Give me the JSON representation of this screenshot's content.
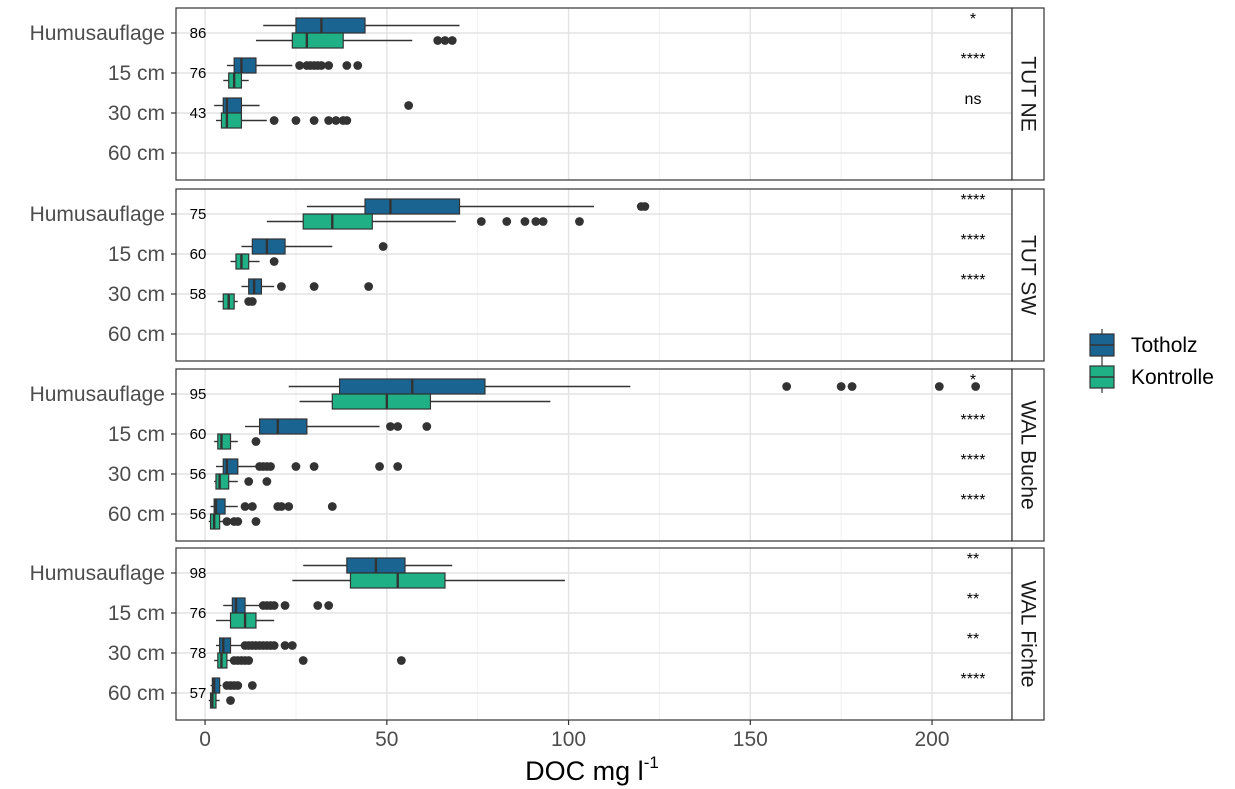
{
  "chart_data": {
    "type": "boxplot",
    "orientation": "horizontal",
    "xlabel_base": "DOC mg l",
    "xlabel_sup": "-1",
    "xlim": [
      -8,
      222
    ],
    "x_ticks": [
      0,
      50,
      100,
      150,
      200
    ],
    "x_tick_labels": [
      "0",
      "50",
      "100",
      "150",
      "200"
    ],
    "categories": [
      "Humusauflage",
      "15 cm",
      "30 cm",
      "60 cm"
    ],
    "grid": true,
    "legend": {
      "position": "right",
      "entries": [
        {
          "name": "Totholz",
          "color": "#1a6491"
        },
        {
          "name": "Kontrolle",
          "color": "#1fb185"
        }
      ]
    },
    "facets": [
      {
        "label": "TUT NE",
        "annotations": [
          {
            "category": "Humusauflage",
            "n": "86",
            "sig": "*"
          },
          {
            "category": "15 cm",
            "n": "76",
            "sig": "****"
          },
          {
            "category": "30 cm",
            "n": "43",
            "sig": "ns"
          }
        ],
        "boxes": [
          {
            "category": "Humusauflage",
            "group": "Totholz",
            "min": 16,
            "q1": 25,
            "median": 32,
            "q3": 44,
            "max": 70,
            "outliers": []
          },
          {
            "category": "Humusauflage",
            "group": "Kontrolle",
            "min": 14,
            "q1": 24,
            "median": 28,
            "q3": 38,
            "max": 57,
            "outliers": [
              64,
              66,
              68
            ]
          },
          {
            "category": "15 cm",
            "group": "Totholz",
            "min": 6,
            "q1": 8,
            "median": 10,
            "q3": 14,
            "max": 24,
            "outliers": [
              26,
              28,
              29,
              30,
              31,
              32,
              34,
              39,
              42
            ]
          },
          {
            "category": "15 cm",
            "group": "Kontrolle",
            "min": 5,
            "q1": 6.5,
            "median": 8,
            "q3": 10,
            "max": 12,
            "outliers": []
          },
          {
            "category": "30 cm",
            "group": "Totholz",
            "min": 2.5,
            "q1": 5,
            "median": 6,
            "q3": 10,
            "max": 15,
            "outliers": [
              56
            ]
          },
          {
            "category": "30 cm",
            "group": "Kontrolle",
            "min": 3,
            "q1": 4.5,
            "median": 6,
            "q3": 10,
            "max": 17,
            "outliers": [
              19,
              25,
              30,
              34,
              36,
              38,
              39
            ]
          }
        ]
      },
      {
        "label": "TUT SW",
        "annotations": [
          {
            "category": "Humusauflage",
            "n": "75",
            "sig": "****"
          },
          {
            "category": "15 cm",
            "n": "60",
            "sig": "****"
          },
          {
            "category": "30 cm",
            "n": "58",
            "sig": "****"
          }
        ],
        "boxes": [
          {
            "category": "Humusauflage",
            "group": "Totholz",
            "min": 28,
            "q1": 44,
            "median": 51,
            "q3": 70,
            "max": 107,
            "outliers": [
              120,
              121
            ]
          },
          {
            "category": "Humusauflage",
            "group": "Kontrolle",
            "min": 17,
            "q1": 27,
            "median": 35,
            "q3": 46,
            "max": 69,
            "outliers": [
              76,
              83,
              88,
              91,
              93,
              103
            ]
          },
          {
            "category": "15 cm",
            "group": "Totholz",
            "min": 10,
            "q1": 13,
            "median": 17,
            "q3": 22,
            "max": 35,
            "outliers": [
              49
            ]
          },
          {
            "category": "15 cm",
            "group": "Kontrolle",
            "min": 7,
            "q1": 8.5,
            "median": 10,
            "q3": 12,
            "max": 15,
            "outliers": [
              19
            ]
          },
          {
            "category": "30 cm",
            "group": "Totholz",
            "min": 10,
            "q1": 12,
            "median": 13.5,
            "q3": 15.5,
            "max": 19,
            "outliers": [
              21,
              30,
              45
            ]
          },
          {
            "category": "30 cm",
            "group": "Kontrolle",
            "min": 3.5,
            "q1": 5,
            "median": 6.5,
            "q3": 8,
            "max": 9,
            "outliers": [
              12,
              13
            ]
          }
        ]
      },
      {
        "label": "WAL Buche",
        "annotations": [
          {
            "category": "Humusauflage",
            "n": "95",
            "sig": "*"
          },
          {
            "category": "15 cm",
            "n": "60",
            "sig": "****"
          },
          {
            "category": "30 cm",
            "n": "56",
            "sig": "****"
          },
          {
            "category": "60 cm",
            "n": "56",
            "sig": "****"
          }
        ],
        "boxes": [
          {
            "category": "Humusauflage",
            "group": "Totholz",
            "min": 23,
            "q1": 37,
            "median": 57,
            "q3": 77,
            "max": 117,
            "outliers": [
              160,
              175,
              178,
              202,
              212
            ]
          },
          {
            "category": "Humusauflage",
            "group": "Kontrolle",
            "min": 26,
            "q1": 35,
            "median": 50,
            "q3": 62,
            "max": 95,
            "outliers": []
          },
          {
            "category": "15 cm",
            "group": "Totholz",
            "min": 11,
            "q1": 15,
            "median": 20,
            "q3": 28,
            "max": 48,
            "outliers": [
              51,
              53,
              61
            ]
          },
          {
            "category": "15 cm",
            "group": "Kontrolle",
            "min": 2.5,
            "q1": 3.5,
            "median": 4.5,
            "q3": 7,
            "max": 9,
            "outliers": [
              14
            ]
          },
          {
            "category": "30 cm",
            "group": "Totholz",
            "min": 3,
            "q1": 5,
            "median": 6,
            "q3": 9,
            "max": 14,
            "outliers": [
              15,
              16,
              17,
              18,
              25,
              30,
              48,
              53
            ]
          },
          {
            "category": "30 cm",
            "group": "Kontrolle",
            "min": 2.5,
            "q1": 3,
            "median": 4,
            "q3": 6.5,
            "max": 9,
            "outliers": [
              12,
              17
            ]
          },
          {
            "category": "60 cm",
            "group": "Totholz",
            "min": 1.5,
            "q1": 2.5,
            "median": 3,
            "q3": 5.5,
            "max": 9,
            "outliers": [
              11,
              13,
              20,
              21,
              23,
              35
            ]
          },
          {
            "category": "60 cm",
            "group": "Kontrolle",
            "min": 1,
            "q1": 1.5,
            "median": 2.5,
            "q3": 4,
            "max": 5,
            "outliers": [
              6,
              8,
              9,
              14
            ]
          }
        ]
      },
      {
        "label": "WAL Fichte",
        "annotations": [
          {
            "category": "Humusauflage",
            "n": "98",
            "sig": "**"
          },
          {
            "category": "15 cm",
            "n": "76",
            "sig": "**"
          },
          {
            "category": "30 cm",
            "n": "78",
            "sig": "**"
          },
          {
            "category": "60 cm",
            "n": "57",
            "sig": "****"
          }
        ],
        "boxes": [
          {
            "category": "Humusauflage",
            "group": "Totholz",
            "min": 27,
            "q1": 39,
            "median": 47,
            "q3": 55,
            "max": 68,
            "outliers": []
          },
          {
            "category": "Humusauflage",
            "group": "Kontrolle",
            "min": 24,
            "q1": 40,
            "median": 53,
            "q3": 66,
            "max": 99,
            "outliers": []
          },
          {
            "category": "15 cm",
            "group": "Totholz",
            "min": 5,
            "q1": 7.5,
            "median": 8.5,
            "q3": 11,
            "max": 15,
            "outliers": [
              16,
              17,
              18,
              19,
              22,
              31,
              34
            ]
          },
          {
            "category": "15 cm",
            "group": "Kontrolle",
            "min": 3,
            "q1": 7,
            "median": 11,
            "q3": 14,
            "max": 19,
            "outliers": []
          },
          {
            "category": "30 cm",
            "group": "Totholz",
            "min": 3,
            "q1": 4,
            "median": 5,
            "q3": 7,
            "max": 10,
            "outliers": [
              11,
              12,
              13,
              14,
              15,
              16,
              17,
              18,
              19,
              22,
              24
            ]
          },
          {
            "category": "30 cm",
            "group": "Kontrolle",
            "min": 2.5,
            "q1": 3.5,
            "median": 4.5,
            "q3": 6,
            "max": 7.5,
            "outliers": [
              8,
              9,
              10,
              11,
              12,
              27,
              54
            ]
          },
          {
            "category": "60 cm",
            "group": "Totholz",
            "min": 1.5,
            "q1": 2,
            "median": 2.5,
            "q3": 4,
            "max": 4.5,
            "outliers": [
              6,
              7,
              8,
              9,
              13
            ]
          },
          {
            "category": "60 cm",
            "group": "Kontrolle",
            "min": 1,
            "q1": 1.5,
            "median": 2,
            "q3": 3,
            "max": 4,
            "outliers": [
              7
            ]
          }
        ]
      }
    ]
  }
}
